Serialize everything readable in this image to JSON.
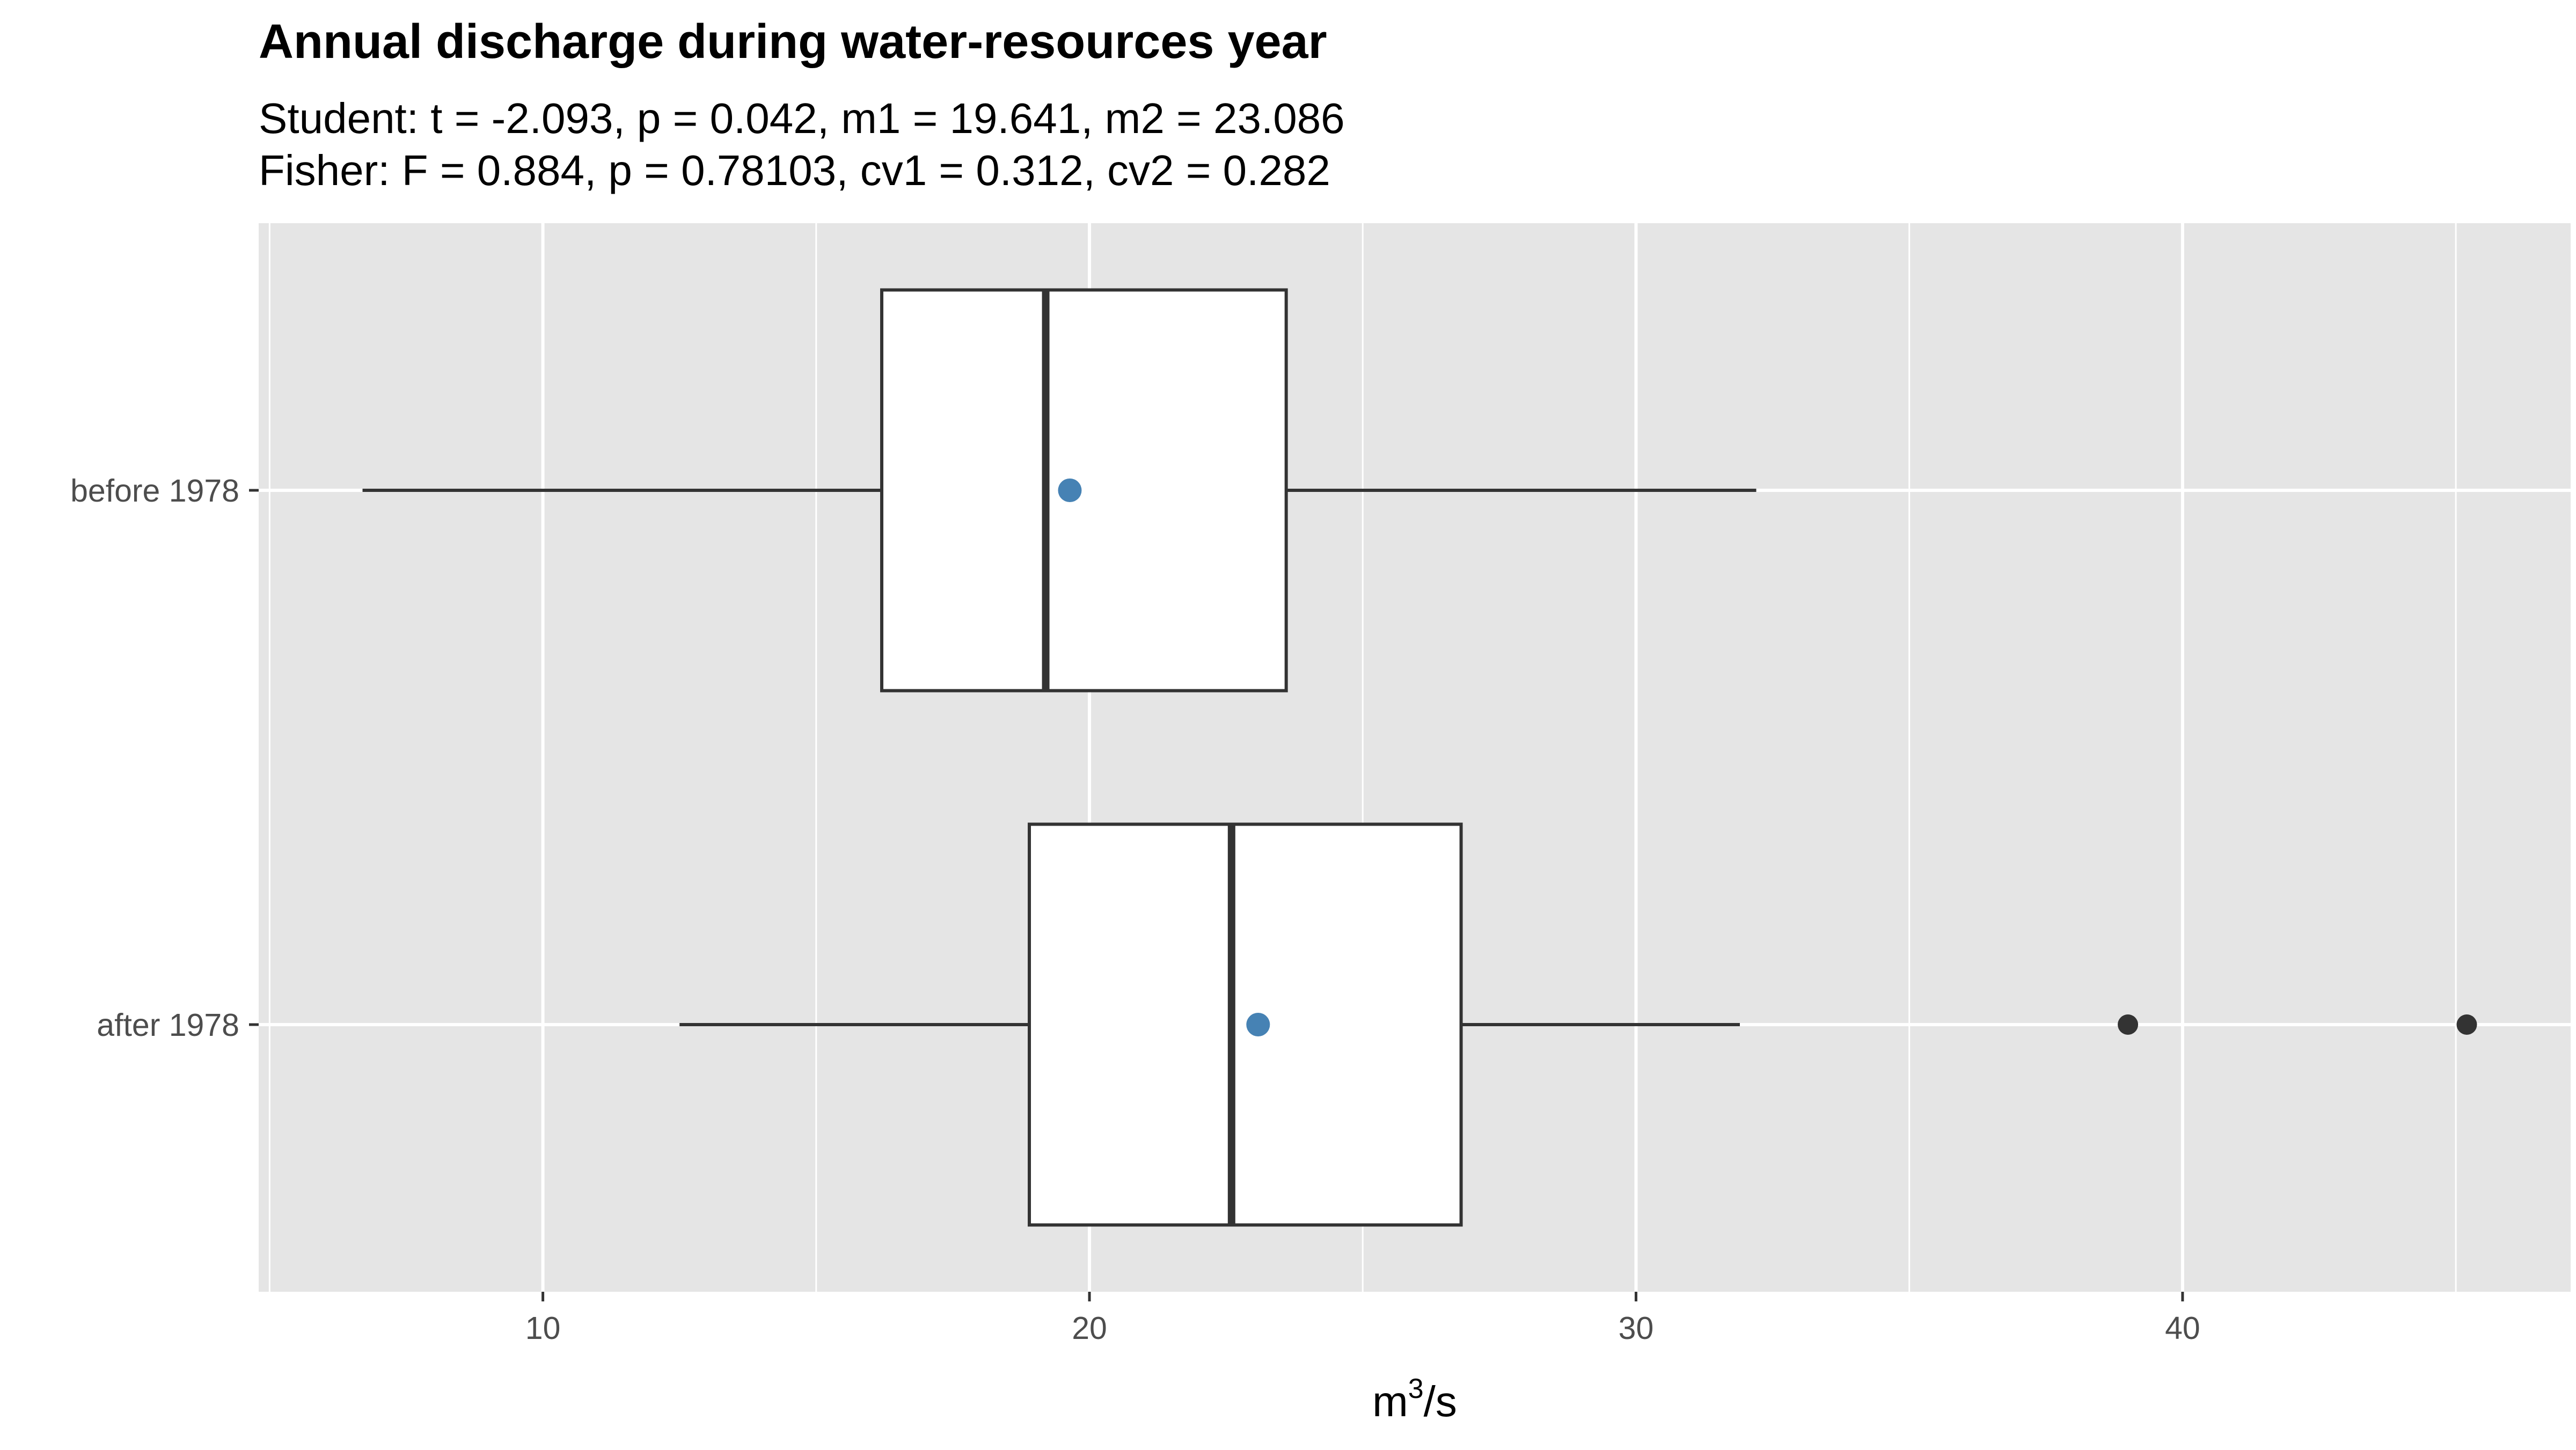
{
  "chart_data": {
    "type": "boxplot",
    "orientation": "horizontal",
    "title": "Annual discharge during water-resources year",
    "subtitle_lines": [
      "Student: t = -2.093, p = 0.042, m1 = 19.641, m2 = 23.086",
      "Fisher: F = 0.884, p = 0.78103, cv1 = 0.312, cv2 = 0.282"
    ],
    "xlabel": {
      "base": "m",
      "superscript": "3",
      "suffix": "/s"
    },
    "ylabel": "",
    "xlim": [
      4.8,
      47.1
    ],
    "x_ticks": [
      10,
      20,
      30,
      40
    ],
    "x_tick_labels": [
      "10",
      "20",
      "30",
      "40"
    ],
    "x_minor_ticks": [
      5,
      15,
      25,
      35,
      45
    ],
    "categories": [
      "before 1978",
      "after 1978"
    ],
    "series": [
      {
        "category": "before 1978",
        "whisker_low": 6.7,
        "q1": 16.2,
        "median": 19.2,
        "q3": 23.6,
        "whisker_high": 32.2,
        "mean": 19.641,
        "outliers": []
      },
      {
        "category": "after 1978",
        "whisker_low": 12.5,
        "q1": 18.9,
        "median": 22.6,
        "q3": 26.8,
        "whisker_high": 31.9,
        "mean": 23.086,
        "outliers": [
          39.0,
          45.2
        ]
      }
    ],
    "grid": true,
    "legend": "none",
    "colors": {
      "panel_bg": "#e5e5e5",
      "grid": "#ffffff",
      "box_fill": "#ffffff",
      "box_line": "#333333",
      "mean_point": "#4682b4",
      "outlier_point": "#333333"
    }
  }
}
